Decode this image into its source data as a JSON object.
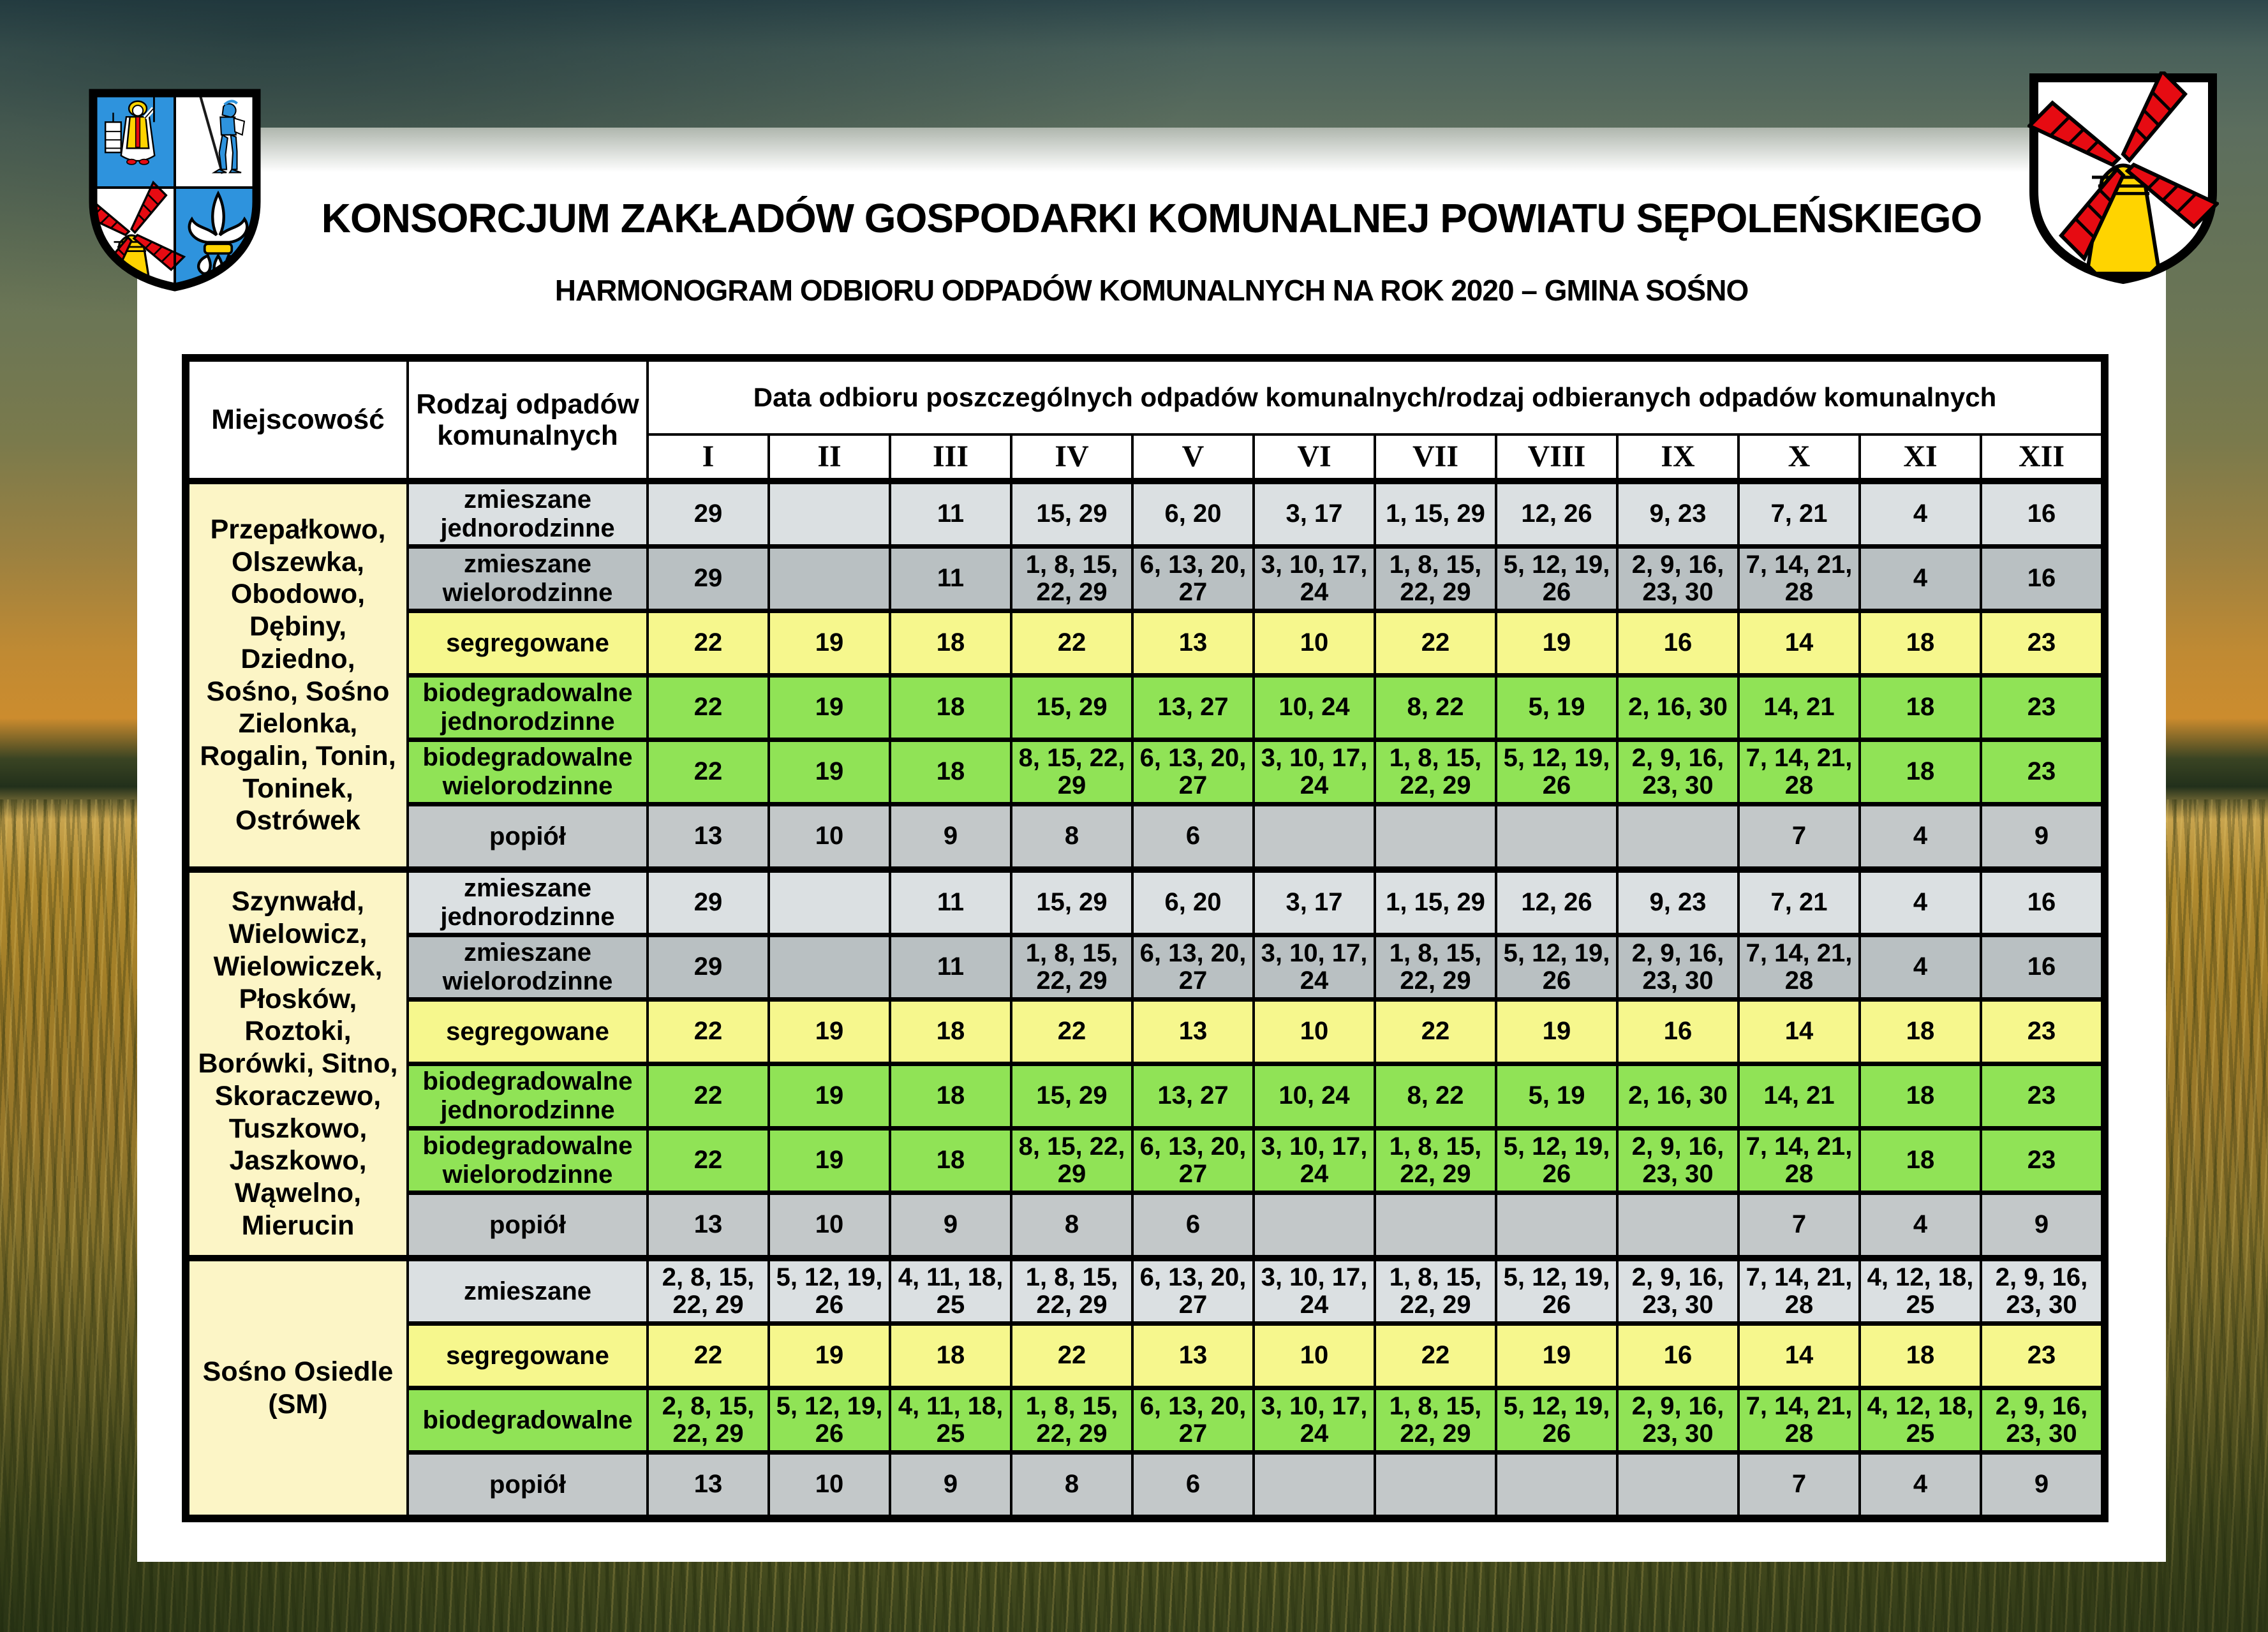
{
  "page": {
    "title": "KONSORCJUM ZAKŁADÓW GOSPODARKI KOMUNALNEJ POWIATU SĘPOLEŃSKIEGO",
    "subtitle": "HARMONOGRAM ODBIORU ODPADÓW KOMUNALNYCH NA ROK 2020 – GMINA SOŚNO"
  },
  "icons": {
    "left_crest": "sepolno-county-coat-of-arms",
    "left_crest_charges": [
      "saint-icon",
      "knight-icon",
      "windmill-icon",
      "fleur-de-lis-icon"
    ],
    "right_crest": "gmina-sosno-coat-of-arms",
    "right_crest_charges": [
      "windmill-icon"
    ]
  },
  "colors": {
    "mixed_single": "#dbe0e2",
    "mixed_multi": "#b9c0c2",
    "segregated": "#f6f78d",
    "bio": "#90e356",
    "ash": "#c3c8c9",
    "locality": "#fcf5c6",
    "crest_blue": "#2e93dd",
    "crest_red": "#e60b12",
    "crest_yellow": "#ffd400",
    "border": "#000000"
  },
  "table": {
    "header": {
      "locality": "Miejscowość",
      "waste_type": "Rodzaj odpadów komunalnych",
      "dates_span": "Data odbioru poszczególnych odpadów komunalnych/rodzaj odbieranych odpadów komunalnych"
    },
    "months": [
      "I",
      "II",
      "III",
      "IV",
      "V",
      "VI",
      "VII",
      "VIII",
      "IX",
      "X",
      "XI",
      "XII"
    ],
    "groups": [
      {
        "locality": "Przepałkowo, Olszewka, Obodowo, Dębiny, Dziedno, Sośno, Sośno Zielonka, Rogalin, Tonin, Toninek, Ostrówek",
        "rows": [
          {
            "label": "zmieszane jednorodzinne",
            "style": "mixed_single",
            "values": [
              "29",
              "",
              "11",
              "15, 29",
              "6, 20",
              "3, 17",
              "1, 15, 29",
              "12, 26",
              "9, 23",
              "7, 21",
              "4",
              "16"
            ]
          },
          {
            "label": "zmieszane wielorodzinne",
            "style": "mixed_multi",
            "values": [
              "29",
              "",
              "11",
              "1, 8, 15, 22, 29",
              "6, 13, 20, 27",
              "3, 10, 17, 24",
              "1, 8, 15, 22, 29",
              "5, 12, 19, 26",
              "2, 9, 16, 23, 30",
              "7, 14, 21, 28",
              "4",
              "16"
            ]
          },
          {
            "label": "segregowane",
            "style": "segregated",
            "values": [
              "22",
              "19",
              "18",
              "22",
              "13",
              "10",
              "22",
              "19",
              "16",
              "14",
              "18",
              "23"
            ]
          },
          {
            "label": "biodegradowalne jednorodzinne",
            "style": "bio",
            "values": [
              "22",
              "19",
              "18",
              "15, 29",
              "13, 27",
              "10, 24",
              "8, 22",
              "5, 19",
              "2, 16, 30",
              "14, 21",
              "18",
              "23"
            ]
          },
          {
            "label": "biodegradowalne wielorodzinne",
            "style": "bio",
            "values": [
              "22",
              "19",
              "18",
              "8, 15, 22, 29",
              "6, 13, 20, 27",
              "3, 10, 17, 24",
              "1, 8, 15, 22, 29",
              "5, 12, 19, 26",
              "2, 9, 16, 23, 30",
              "7, 14, 21, 28",
              "18",
              "23"
            ]
          },
          {
            "label": "popiół",
            "style": "ash",
            "values": [
              "13",
              "10",
              "9",
              "8",
              "6",
              "",
              "",
              "",
              "",
              "7",
              "4",
              "9"
            ]
          }
        ]
      },
      {
        "locality": "Szynwałd, Wielowicz, Wielowiczek, Płosków, Roztoki, Borówki, Sitno, Skoraczewo, Tuszkowo, Jaszkowo, Wąwelno, Mierucin",
        "rows": [
          {
            "label": "zmieszane jednorodzinne",
            "style": "mixed_single",
            "values": [
              "29",
              "",
              "11",
              "15, 29",
              "6, 20",
              "3, 17",
              "1, 15, 29",
              "12, 26",
              "9, 23",
              "7, 21",
              "4",
              "16"
            ]
          },
          {
            "label": "zmieszane wielorodzinne",
            "style": "mixed_multi",
            "values": [
              "29",
              "",
              "11",
              "1, 8, 15, 22, 29",
              "6, 13, 20, 27",
              "3, 10, 17, 24",
              "1, 8, 15, 22, 29",
              "5, 12, 19, 26",
              "2, 9, 16, 23, 30",
              "7, 14, 21, 28",
              "4",
              "16"
            ]
          },
          {
            "label": "segregowane",
            "style": "segregated",
            "values": [
              "22",
              "19",
              "18",
              "22",
              "13",
              "10",
              "22",
              "19",
              "16",
              "14",
              "18",
              "23"
            ]
          },
          {
            "label": "biodegradowalne jednorodzinne",
            "style": "bio",
            "values": [
              "22",
              "19",
              "18",
              "15, 29",
              "13, 27",
              "10, 24",
              "8, 22",
              "5, 19",
              "2, 16, 30",
              "14, 21",
              "18",
              "23"
            ]
          },
          {
            "label": "biodegradowalne wielorodzinne",
            "style": "bio",
            "values": [
              "22",
              "19",
              "18",
              "8, 15, 22, 29",
              "6, 13, 20, 27",
              "3, 10, 17, 24",
              "1, 8, 15, 22, 29",
              "5, 12, 19, 26",
              "2, 9, 16, 23, 30",
              "7, 14, 21, 28",
              "18",
              "23"
            ]
          },
          {
            "label": "popiół",
            "style": "ash",
            "values": [
              "13",
              "10",
              "9",
              "8",
              "6",
              "",
              "",
              "",
              "",
              "7",
              "4",
              "9"
            ]
          }
        ]
      },
      {
        "locality": "Sośno Osiedle (SM)",
        "rows": [
          {
            "label": "zmieszane",
            "style": "mixed_single",
            "values": [
              "2, 8, 15, 22, 29",
              "5, 12, 19, 26",
              "4, 11, 18, 25",
              "1, 8, 15, 22, 29",
              "6, 13, 20, 27",
              "3, 10, 17, 24",
              "1, 8, 15, 22, 29",
              "5, 12, 19, 26",
              "2, 9, 16, 23, 30",
              "7, 14, 21, 28",
              "4, 12, 18, 25",
              "2, 9, 16, 23, 30"
            ]
          },
          {
            "label": "segregowane",
            "style": "segregated",
            "values": [
              "22",
              "19",
              "18",
              "22",
              "13",
              "10",
              "22",
              "19",
              "16",
              "14",
              "18",
              "23"
            ]
          },
          {
            "label": "biodegradowalne",
            "style": "bio",
            "values": [
              "2, 8, 15, 22, 29",
              "5, 12, 19, 26",
              "4, 11, 18, 25",
              "1, 8, 15, 22, 29",
              "6, 13, 20, 27",
              "3, 10, 17, 24",
              "1, 8, 15, 22, 29",
              "5, 12, 19, 26",
              "2, 9, 16, 23, 30",
              "7, 14, 21, 28",
              "4, 12, 18, 25",
              "2, 9, 16, 23, 30"
            ]
          },
          {
            "label": "popiół",
            "style": "ash",
            "values": [
              "13",
              "10",
              "9",
              "8",
              "6",
              "",
              "",
              "",
              "",
              "7",
              "4",
              "9"
            ]
          }
        ]
      }
    ]
  }
}
